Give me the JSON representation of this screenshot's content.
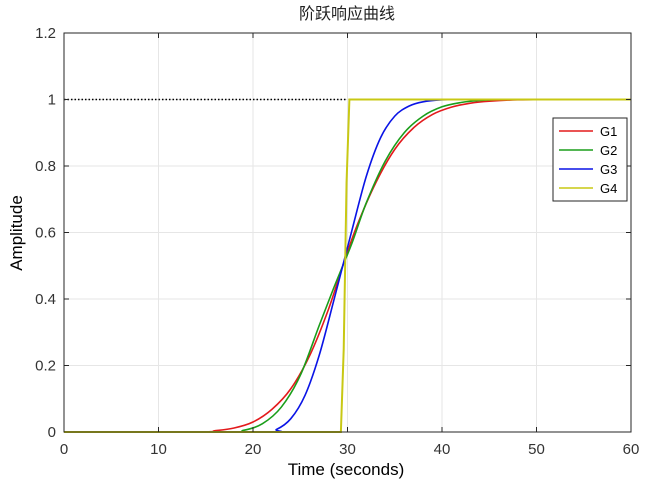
{
  "chart_data": {
    "type": "line",
    "title": "阶跃响应曲线",
    "xlabel": "Time (seconds)",
    "ylabel": "Amplitude",
    "xlim": [
      0,
      60
    ],
    "ylim": [
      0,
      1.2
    ],
    "x_ticks": [
      "0",
      "10",
      "20",
      "30",
      "40",
      "50",
      "60"
    ],
    "y_ticks": [
      "0",
      "0.2",
      "0.4",
      "0.6",
      "0.8",
      "1",
      "1.2"
    ],
    "grid": true,
    "legend_position": "right",
    "reference_line": {
      "y": 1,
      "x_range": [
        0,
        30
      ],
      "style": "dotted",
      "color": "#000000"
    },
    "series": [
      {
        "name": "G1",
        "color": "#e31a1c",
        "x": [
          0,
          14,
          16,
          18,
          20,
          22,
          24,
          26,
          28,
          29.5,
          31,
          33,
          35,
          37,
          39,
          41,
          43,
          45,
          48,
          52,
          56
        ],
        "y": [
          0,
          0,
          0.004,
          0.012,
          0.03,
          0.068,
          0.13,
          0.23,
          0.37,
          0.5,
          0.62,
          0.75,
          0.85,
          0.915,
          0.955,
          0.977,
          0.989,
          0.995,
          0.999,
          1.0,
          1.0
        ]
      },
      {
        "name": "G2",
        "color": "#1a9e1a",
        "x": [
          0,
          17,
          19,
          21,
          23,
          25,
          27,
          28.5,
          29.5,
          30.5,
          32,
          34,
          36,
          38,
          40,
          42,
          44,
          47,
          51,
          56
        ],
        "y": [
          0,
          0,
          0.005,
          0.025,
          0.075,
          0.17,
          0.32,
          0.43,
          0.5,
          0.57,
          0.69,
          0.815,
          0.9,
          0.95,
          0.978,
          0.991,
          0.997,
          1.0,
          1.0,
          1.0
        ]
      },
      {
        "name": "G3",
        "color": "#0a14e6",
        "x": [
          0,
          21,
          22.5,
          24,
          25.5,
          27,
          28.5,
          29.5,
          30.5,
          32,
          33.5,
          35,
          36.5,
          38,
          40,
          42,
          45,
          50,
          56
        ],
        "y": [
          0,
          0,
          0.008,
          0.04,
          0.11,
          0.23,
          0.39,
          0.5,
          0.61,
          0.77,
          0.885,
          0.95,
          0.98,
          0.993,
          0.999,
          1.0,
          1.0,
          1.0,
          1.0
        ]
      },
      {
        "name": "G4",
        "color": "#c8c814",
        "x": [
          0,
          29.3,
          29.6,
          29.9,
          30.2,
          60
        ],
        "y": [
          0,
          0,
          0.25,
          0.75,
          1.0,
          1.0
        ]
      }
    ]
  }
}
